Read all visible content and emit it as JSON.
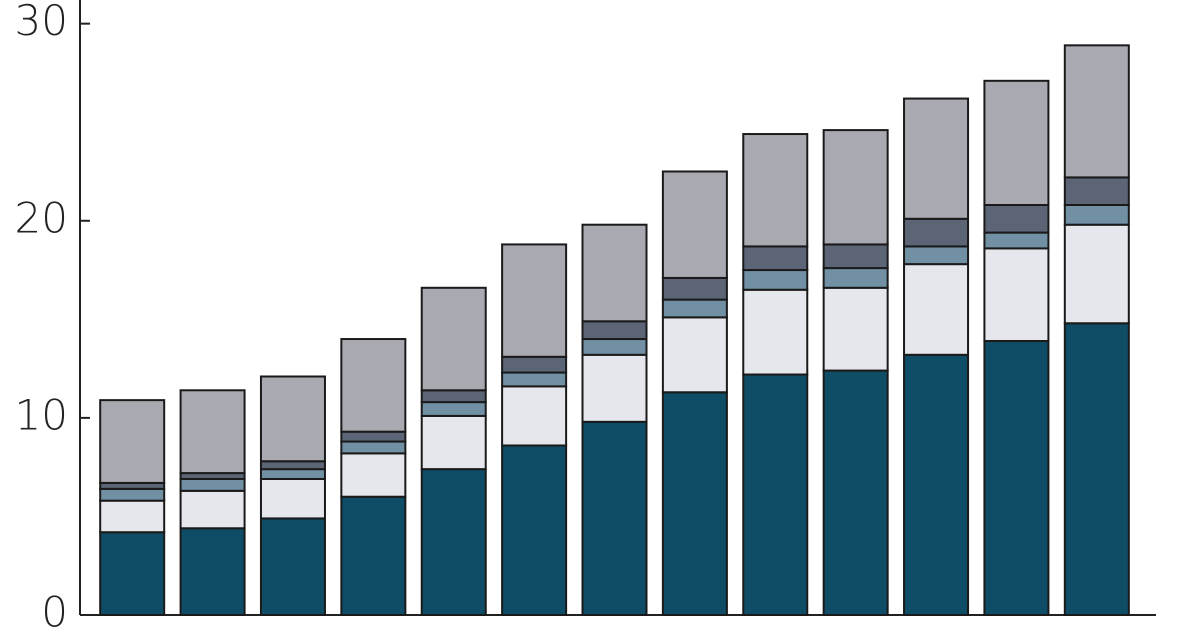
{
  "chart_data": {
    "type": "stacked_bar",
    "categories": [
      null,
      null,
      null,
      null,
      null,
      null,
      null,
      null,
      null,
      null,
      null,
      null,
      null
    ],
    "series": [
      {
        "color": "#0f4c66",
        "values": [
          4.2,
          4.4,
          4.9,
          6.0,
          7.4,
          8.6,
          9.8,
          11.3,
          12.2,
          12.4,
          13.2,
          13.9,
          14.8
        ]
      },
      {
        "color": "#e6e7ec",
        "values": [
          1.6,
          1.9,
          2.0,
          2.2,
          2.7,
          3.0,
          3.4,
          3.8,
          4.3,
          4.2,
          4.6,
          4.7,
          5.0
        ]
      },
      {
        "color": "#7190a4",
        "values": [
          0.6,
          0.6,
          0.5,
          0.6,
          0.7,
          0.7,
          0.8,
          0.9,
          1.0,
          1.0,
          0.9,
          0.8,
          1.0
        ]
      },
      {
        "color": "#5b6575",
        "values": [
          0.3,
          0.3,
          0.4,
          0.5,
          0.6,
          0.8,
          0.9,
          1.1,
          1.2,
          1.2,
          1.4,
          1.4,
          1.4
        ]
      },
      {
        "color": "#a9a9b1",
        "values": [
          4.2,
          4.2,
          4.3,
          4.7,
          5.2,
          5.7,
          4.9,
          5.4,
          5.7,
          5.8,
          6.1,
          6.3,
          6.7
        ]
      }
    ],
    "ylim": [
      0,
      31.2
    ],
    "yticks": [
      0,
      10,
      20,
      30
    ]
  }
}
